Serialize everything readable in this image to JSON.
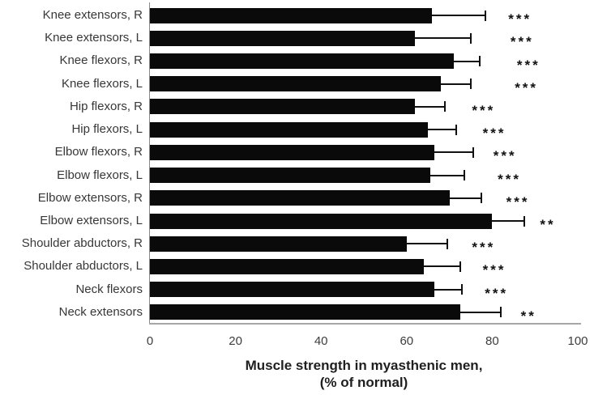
{
  "chart_data": {
    "type": "bar",
    "orientation": "horizontal",
    "title": "",
    "xlabel_line1": "Muscle strength in myasthenic men,",
    "xlabel_line2": "(% of normal)",
    "xlim": [
      0,
      100
    ],
    "xticks": [
      "0",
      "20",
      "40",
      "60",
      "80",
      "100"
    ],
    "grid": false,
    "legend": "none",
    "bar_color": "#0a0a0a",
    "error_bar_color": "#111111",
    "categories": [
      "Knee extensors, R",
      "Knee extensors, L",
      "Knee flexors, R",
      "Knee flexors, L",
      "Hip flexors, R",
      "Hip flexors, L",
      "Elbow flexors, R",
      "Elbow flexors, L",
      "Elbow extensors, R",
      "Elbow extensors, L",
      "Shoulder abductors, R",
      "Shoulder abductors, L",
      "Neck flexors",
      "Neck extensors"
    ],
    "values": [
      66,
      62,
      71,
      68,
      62,
      65,
      66.5,
      65.5,
      70,
      80,
      60,
      64,
      66.5,
      72.5
    ],
    "errors_upper": [
      12.5,
      13,
      6,
      7,
      7,
      6.5,
      9,
      8,
      7.5,
      7.5,
      9.5,
      8.5,
      6.5,
      9.5
    ],
    "significance": [
      "***",
      "***",
      "***",
      "***",
      "***",
      "***",
      "***",
      "***",
      "***",
      "**",
      "***",
      "***",
      "***",
      "**"
    ],
    "sig_x": [
      86.5,
      87,
      88.5,
      88,
      78,
      80.5,
      83,
      84,
      86,
      93,
      78,
      80.5,
      81,
      88.5
    ]
  }
}
